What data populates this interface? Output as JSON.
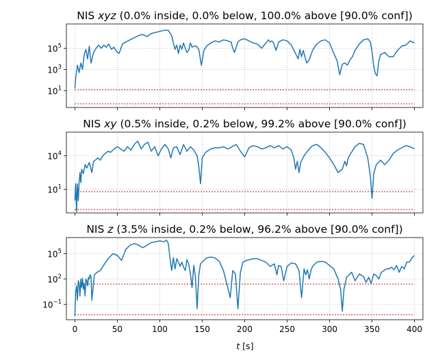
{
  "colors": {
    "series": "#1f77b4",
    "bounds": "#d62728",
    "grid": "#b0b0b0",
    "axes": "#000000"
  },
  "xaxis": {
    "label_var": "t",
    "label_unit": " [s]",
    "ticks": [
      "0",
      "50",
      "100",
      "150",
      "200",
      "250",
      "300",
      "350",
      "400"
    ]
  },
  "chart_data": [
    {
      "type": "line",
      "title": {
        "prefix": "NIS ",
        "var": "xyz",
        "rest": " (0.0% inside, 0.0% below, 100.0% above  [90.0% conf])"
      },
      "log_y": true,
      "grid": true,
      "xlim": [
        -10,
        410
      ],
      "ylim_log10": [
        -0.6,
        7.3
      ],
      "y_ticks": [
        {
          "log10": 1,
          "mant": "10",
          "exp": "1"
        },
        {
          "log10": 3,
          "mant": "10",
          "exp": "3"
        },
        {
          "log10": 5,
          "mant": "10",
          "exp": "5"
        }
      ],
      "bounds_log10": [
        -0.25,
        1.1
      ],
      "series": [
        {
          "x": [
            0,
            1,
            3,
            5,
            7,
            9,
            11,
            13,
            15,
            17,
            19,
            22,
            25,
            28,
            31,
            34,
            37,
            40,
            43,
            46,
            49,
            52,
            56,
            60,
            65,
            70,
            75,
            80,
            85,
            90,
            95,
            100,
            105,
            110,
            114,
            116,
            118,
            120,
            122,
            124,
            126,
            128,
            130,
            132,
            134,
            136,
            138,
            140,
            143,
            146,
            149,
            152,
            155,
            160,
            165,
            170,
            175,
            180,
            184,
            186,
            188,
            190,
            192,
            195,
            200,
            205,
            210,
            215,
            220,
            225,
            228,
            230,
            232,
            234,
            237,
            240,
            245,
            250,
            255,
            260,
            263,
            265,
            267,
            269,
            271,
            273,
            276,
            280,
            285,
            290,
            295,
            300,
            305,
            309,
            312,
            315,
            318,
            321,
            324,
            327,
            330,
            335,
            340,
            345,
            348,
            350,
            352,
            354,
            356,
            358,
            360,
            365,
            370,
            375,
            380,
            385,
            390,
            395,
            400
          ],
          "y_log10": [
            1.2,
            2.2,
            3.4,
            2.7,
            3.6,
            3.0,
            4.4,
            4.9,
            4.0,
            5.2,
            3.6,
            4.6,
            5.0,
            5.3,
            5.0,
            5.3,
            5.1,
            5.4,
            4.9,
            5.1,
            4.7,
            4.5,
            5.4,
            5.6,
            5.8,
            6.0,
            6.2,
            6.3,
            6.1,
            6.4,
            6.5,
            6.6,
            6.7,
            6.7,
            6.2,
            5.5,
            4.9,
            5.3,
            4.5,
            5.3,
            4.9,
            5.5,
            5.0,
            4.6,
            4.8,
            5.5,
            5.1,
            5.2,
            5.2,
            4.9,
            3.4,
            4.8,
            5.2,
            5.5,
            5.7,
            5.6,
            5.8,
            5.7,
            5.6,
            5.0,
            4.6,
            5.1,
            5.6,
            5.8,
            5.9,
            5.7,
            5.5,
            5.4,
            5.0,
            5.5,
            5.8,
            5.6,
            5.7,
            5.5,
            4.8,
            5.6,
            5.8,
            5.7,
            5.3,
            4.5,
            4.0,
            4.9,
            4.2,
            4.8,
            4.2,
            3.6,
            3.9,
            4.8,
            5.4,
            5.7,
            5.8,
            5.5,
            4.5,
            3.8,
            2.5,
            3.5,
            3.6,
            3.4,
            3.9,
            4.2,
            4.8,
            5.4,
            5.8,
            5.9,
            5.6,
            4.7,
            3.3,
            2.6,
            2.4,
            3.8,
            4.4,
            4.6,
            4.2,
            4.2,
            4.8,
            5.2,
            5.3,
            5.7,
            5.5
          ]
        }
      ]
    },
    {
      "type": "line",
      "title": {
        "prefix": "NIS ",
        "var": "xy",
        "rest": " (0.5% inside, 0.2% below, 99.2% above  [90.0% conf])"
      },
      "log_y": true,
      "grid": true,
      "xlim": [
        -10,
        410
      ],
      "ylim_log10": [
        -1.1,
        6.1
      ],
      "y_ticks": [
        {
          "log10": 1,
          "mant": "10",
          "exp": "1"
        },
        {
          "log10": 4,
          "mant": "10",
          "exp": "4"
        }
      ],
      "bounds_log10": [
        -0.8,
        0.8
      ],
      "series": [
        {
          "x": [
            0,
            1,
            2,
            3,
            4,
            5,
            6,
            7,
            8,
            10,
            12,
            14,
            17,
            20,
            22,
            24,
            27,
            30,
            33,
            36,
            39,
            42,
            46,
            50,
            54,
            58,
            62,
            66,
            70,
            74,
            78,
            82,
            86,
            90,
            94,
            98,
            102,
            106,
            110,
            113,
            116,
            120,
            124,
            128,
            132,
            136,
            140,
            144,
            146,
            148,
            150,
            154,
            160,
            165,
            170,
            175,
            180,
            185,
            190,
            195,
            200,
            205,
            210,
            215,
            220,
            225,
            230,
            235,
            240,
            245,
            250,
            255,
            258,
            260,
            262,
            264,
            266,
            270,
            275,
            280,
            285,
            290,
            295,
            300,
            305,
            310,
            315,
            318,
            320,
            322,
            325,
            330,
            335,
            340,
            345,
            348,
            350,
            352,
            355,
            360,
            365,
            370,
            375,
            380,
            385,
            390,
            395,
            400
          ],
          "y_log10": [
            0,
            1.5,
            -1.0,
            1.5,
            0,
            1.6,
            2.5,
            1.6,
            2.8,
            2.4,
            3.2,
            2.9,
            3.4,
            2.5,
            3.5,
            3.6,
            3.8,
            3.6,
            4.0,
            4.2,
            4.4,
            4.3,
            4.6,
            4.8,
            4.6,
            4.4,
            4.8,
            4.5,
            5.0,
            5.3,
            4.6,
            5.0,
            5.2,
            4.4,
            4.8,
            4.0,
            4.6,
            5.0,
            4.6,
            3.8,
            4.7,
            4.8,
            4.1,
            5.0,
            4.4,
            4.8,
            4.5,
            4.0,
            3.0,
            1.5,
            3.8,
            4.3,
            4.6,
            4.7,
            4.7,
            4.8,
            4.6,
            4.8,
            5.0,
            4.4,
            3.9,
            4.7,
            4.9,
            4.8,
            4.6,
            4.7,
            4.9,
            4.7,
            4.9,
            4.6,
            4.8,
            4.5,
            3.8,
            2.8,
            3.5,
            2.5,
            3.4,
            4.0,
            4.5,
            4.9,
            5.0,
            4.7,
            4.3,
            3.8,
            3.2,
            2.5,
            2.8,
            3.5,
            3.1,
            3.8,
            4.2,
            4.8,
            5.1,
            5.0,
            3.8,
            2.2,
            0.2,
            2.4,
            3.2,
            3.6,
            3.2,
            3.6,
            4.2,
            4.5,
            4.7,
            4.9,
            4.8,
            4.6
          ]
        }
      ]
    },
    {
      "type": "line",
      "title": {
        "prefix": "NIS ",
        "var": "z",
        "rest": " (3.5% inside, 0.2% below, 96.2% above  [90.0% conf])"
      },
      "log_y": true,
      "grid": true,
      "xlim": [
        -10,
        410
      ],
      "ylim_log10": [
        -2.8,
        6.9
      ],
      "y_ticks": [
        {
          "log10": -1,
          "mant": "10",
          "exp": "−1"
        },
        {
          "log10": 2,
          "mant": "10",
          "exp": "2"
        },
        {
          "log10": 5,
          "mant": "10",
          "exp": "5"
        }
      ],
      "bounds_log10": [
        -2.2,
        1.4
      ],
      "series": [
        {
          "x": [
            0,
            1,
            2,
            3,
            4,
            5,
            6,
            7,
            8,
            9,
            10,
            11,
            12,
            13,
            14,
            15,
            16,
            17,
            18,
            19,
            20,
            23,
            26,
            30,
            35,
            40,
            45,
            50,
            55,
            60,
            65,
            70,
            75,
            80,
            85,
            90,
            95,
            100,
            105,
            108,
            110,
            112,
            114,
            116,
            118,
            120,
            122,
            124,
            126,
            128,
            130,
            132,
            134,
            136,
            138,
            140,
            142,
            144,
            146,
            148,
            150,
            152,
            155,
            160,
            165,
            170,
            175,
            180,
            183,
            186,
            189,
            192,
            195,
            198,
            202,
            206,
            210,
            215,
            220,
            225,
            230,
            235,
            238,
            240,
            243,
            246,
            250,
            255,
            260,
            264,
            267,
            270,
            272,
            274,
            276,
            278,
            280,
            285,
            290,
            295,
            300,
            305,
            310,
            313,
            315,
            317,
            320,
            323,
            326,
            330,
            335,
            340,
            343,
            346,
            349,
            352,
            355,
            358,
            361,
            364,
            367,
            370,
            373,
            376,
            379,
            382,
            385,
            388,
            391,
            394,
            397,
            400
          ],
          "y_log10": [
            -2.4,
            0.5,
            1.2,
            -0.5,
            1.8,
            1.5,
            0,
            2.0,
            1.0,
            2.1,
            0.8,
            1.5,
            0,
            2.0,
            1.8,
            1.2,
            2.2,
            2.0,
            2.5,
            2.3,
            -0.5,
            2.5,
            2.8,
            3.0,
            3.8,
            4.5,
            5.0,
            4.8,
            4.2,
            5.5,
            6.0,
            6.2,
            6.0,
            5.7,
            6.0,
            6.3,
            6.4,
            6.5,
            6.4,
            6.6,
            6.2,
            4.5,
            3.0,
            4.5,
            3.2,
            4.4,
            4.0,
            3.5,
            4.0,
            3.4,
            3.0,
            4.3,
            3.8,
            2.7,
            1.0,
            3.6,
            2.2,
            -1.5,
            2.5,
            3.8,
            4.0,
            4.2,
            4.5,
            4.6,
            4.5,
            4.1,
            3.0,
            1.0,
            -0.2,
            3.0,
            2.6,
            -1.5,
            2.8,
            4.0,
            4.2,
            4.3,
            4.4,
            4.4,
            4.2,
            4.0,
            3.5,
            3.8,
            2.5,
            3.6,
            3.5,
            1.8,
            3.5,
            3.9,
            3.8,
            3.0,
            -0.2,
            3.2,
            2.5,
            3.1,
            2.0,
            3.0,
            3.5,
            4.0,
            4.1,
            4.0,
            3.6,
            3.2,
            2.0,
            0.8,
            -1.8,
            0.8,
            2.2,
            2.5,
            2.8,
            1.8,
            2.6,
            2.3,
            1.6,
            2.2,
            1.5,
            2.6,
            2.4,
            2.0,
            2.8,
            3.0,
            3.2,
            3.2,
            3.4,
            3.1,
            3.6,
            2.8,
            3.5,
            3.2,
            4.0,
            4.0,
            4.5,
            4.8
          ]
        }
      ]
    }
  ]
}
